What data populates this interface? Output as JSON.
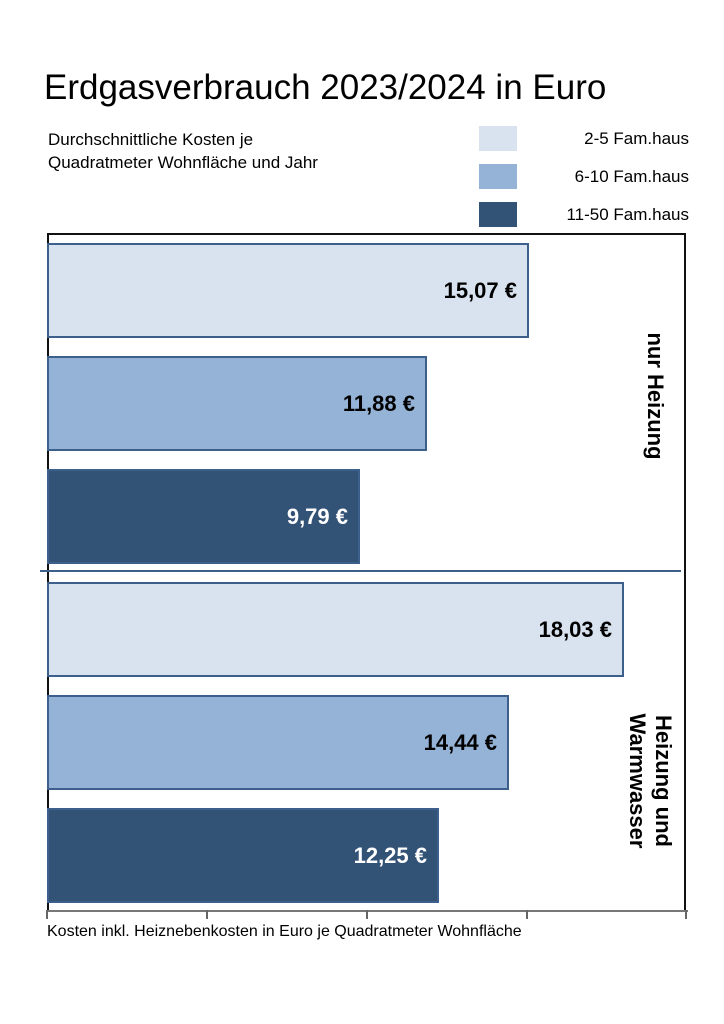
{
  "chart_data": {
    "type": "bar",
    "orientation": "horizontal",
    "title": "Erdgasverbrauch 2023/2024 in Euro",
    "subtitle": [
      "Durchschnittliche Kosten je",
      "Quadratmeter Wohnfläche und Jahr"
    ],
    "xlabel": "Kosten inkl. Heiznebenkosten in Euro je Quadratmeter Wohnfläche",
    "ylabel": "",
    "xlim": [
      0,
      20
    ],
    "x_ticks": [
      0,
      5,
      10,
      15,
      20
    ],
    "tick_labels_shown": false,
    "grid": false,
    "legend_position": "top-right",
    "categories": [
      "nur Heizung",
      "Heizung und Warmwasser"
    ],
    "series": [
      {
        "name": "2-5 Fam.haus",
        "color": "#d9e3ef",
        "values": [
          15.07,
          18.03
        ],
        "labels": [
          "15,07 €",
          "18,03 €"
        ]
      },
      {
        "name": "6-10 Fam.haus",
        "color": "#95b3d7",
        "values": [
          11.88,
          14.44
        ],
        "labels": [
          "11,88 €",
          "14,44 €"
        ]
      },
      {
        "name": "11-50 Fam.haus",
        "color": "#325276",
        "values": [
          9.79,
          12.25
        ],
        "labels": [
          "9,79 €",
          "12,25 €"
        ]
      }
    ]
  },
  "header": {
    "title": "Erdgasverbrauch 2023/2024 in Euro",
    "subtitle_line1": "Durchschnittliche Kosten je",
    "subtitle_line2": "Quadratmeter Wohnfläche und Jahr"
  },
  "legend": [
    {
      "label": "2-5 Fam.haus",
      "color": "#d9e3ef"
    },
    {
      "label": "6-10 Fam.haus",
      "color": "#95b3d7"
    },
    {
      "label": "11-50 Fam.haus",
      "color": "#325276"
    }
  ],
  "groups": [
    {
      "label": "nur Heizung",
      "bars": [
        {
          "value": 15.07,
          "label": "15,07 €",
          "color": "#d9e3ef",
          "text_color": "#000000"
        },
        {
          "value": 11.88,
          "label": "11,88 €",
          "color": "#95b3d7",
          "text_color": "#000000"
        },
        {
          "value": 9.79,
          "label": "9,79 €",
          "color": "#325276",
          "text_color": "#ffffff"
        }
      ]
    },
    {
      "label_line1": "Heizung und",
      "label_line2": "Warmwasser",
      "bars": [
        {
          "value": 18.03,
          "label": "18,03 €",
          "color": "#d9e3ef",
          "text_color": "#000000"
        },
        {
          "value": 14.44,
          "label": "14,44 €",
          "color": "#95b3d7",
          "text_color": "#000000"
        },
        {
          "value": 12.25,
          "label": "12,25 €",
          "color": "#325276",
          "text_color": "#ffffff"
        }
      ]
    }
  ],
  "axis": {
    "label": "Kosten inkl. Heiznebenkosten in Euro je Quadratmeter Wohnfläche",
    "max": 20
  }
}
